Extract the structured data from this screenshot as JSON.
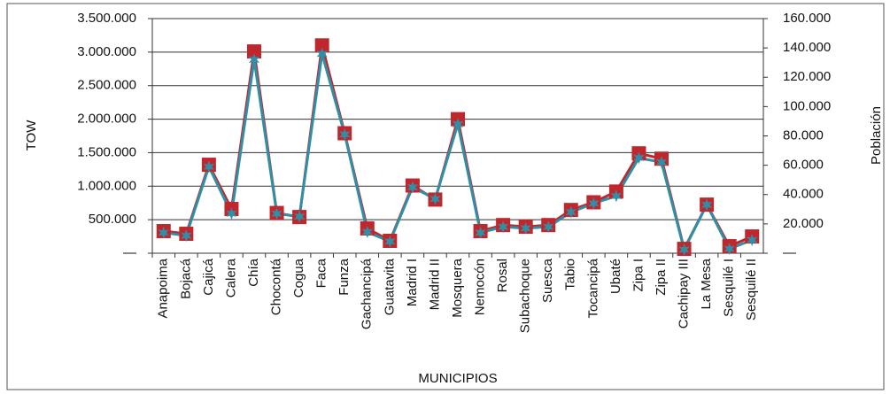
{
  "chart_data": {
    "type": "line",
    "x_label": "MUNICIPIOS",
    "y_label": "TOW",
    "y2_label": "Población",
    "categories": [
      "Anapoima",
      "Bojacá",
      "Cajicá",
      "Calera",
      "Chía",
      "Chocontá",
      "Cogua",
      "Faca",
      "Funza",
      "Gachancipá",
      "Guatavita",
      "Madrid I",
      "Madrid II",
      "Mosquera",
      "Nemocón",
      "Rosal",
      "Subachoque",
      "Suesca",
      "Tabio",
      "Tocancipá",
      "Ubaté",
      "Zipa I",
      "Zipa II",
      "Cachipay III",
      "La Mesa",
      "Sesquilé I",
      "Sesquilé II"
    ],
    "series": [
      {
        "color": "#c0272d",
        "marker": "square",
        "axis": "y",
        "values": [
          330000,
          290000,
          1320000,
          660000,
          3010000,
          600000,
          540000,
          3100000,
          1790000,
          370000,
          185000,
          1010000,
          800000,
          2000000,
          330000,
          420000,
          395000,
          420000,
          645000,
          760000,
          920000,
          1490000,
          1410000,
          65000,
          725000,
          105000,
          250000
        ]
      },
      {
        "color": "#2e8fa6",
        "marker": "star",
        "axis": "y2",
        "values": [
          14000,
          12000,
          59000,
          27000,
          132000,
          27000,
          25000,
          136000,
          81000,
          14500,
          8000,
          45000,
          37000,
          88000,
          14000,
          18000,
          17000,
          18000,
          28000,
          34000,
          39000,
          65000,
          62000,
          2500,
          33000,
          3000,
          9000
        ]
      }
    ],
    "ylim": [
      0,
      3500000
    ],
    "yticks": [
      {
        "value": 0,
        "label": "—"
      },
      {
        "value": 500000,
        "label": "500.000"
      },
      {
        "value": 1000000,
        "label": "1.000.000"
      },
      {
        "value": 1500000,
        "label": "1.500.000"
      },
      {
        "value": 2000000,
        "label": "2.000.000"
      },
      {
        "value": 2500000,
        "label": "2.500.000"
      },
      {
        "value": 3000000,
        "label": "3.000.000"
      },
      {
        "value": 3500000,
        "label": "3.500.000"
      }
    ],
    "y2lim": [
      0,
      160000
    ],
    "y2ticks": [
      {
        "value": 0,
        "label": "—"
      },
      {
        "value": 20000,
        "label": "20.000"
      },
      {
        "value": 40000,
        "label": "40.000"
      },
      {
        "value": 60000,
        "label": "60.000"
      },
      {
        "value": 80000,
        "label": "80.000"
      },
      {
        "value": 100000,
        "label": "100.000"
      },
      {
        "value": 120000,
        "label": "120.000"
      },
      {
        "value": 140000,
        "label": "140.000"
      },
      {
        "value": 160000,
        "label": "160.000"
      }
    ],
    "grid": true
  }
}
